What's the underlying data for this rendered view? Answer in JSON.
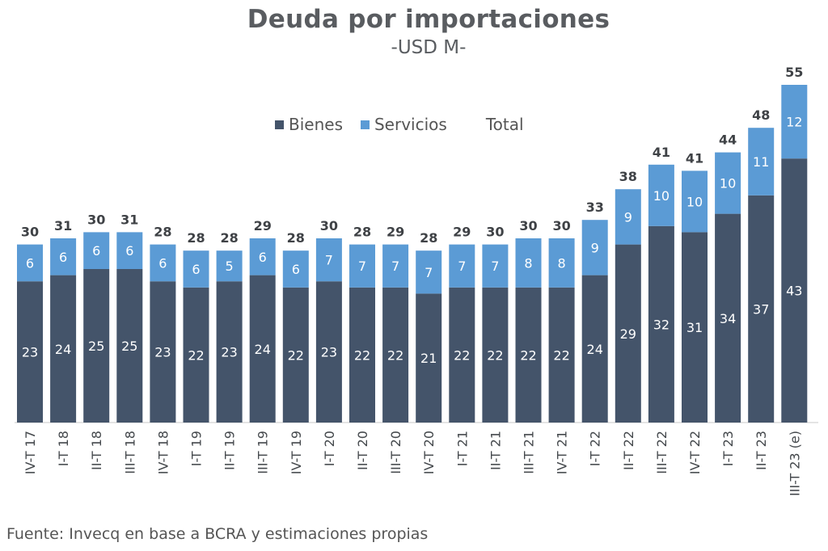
{
  "chart_data": {
    "type": "bar",
    "stacked": true,
    "title": "Deuda por importaciones",
    "subtitle": "-USD M-",
    "categories": [
      "IV-T 17",
      "I-T 18",
      "II-T 18",
      "III-T 18",
      "IV-T 18",
      "I-T 19",
      "II-T 19",
      "III-T 19",
      "IV-T 19",
      "I-T 20",
      "II-T 20",
      "III-T 20",
      "IV-T 20",
      "I-T 21",
      "II-T 21",
      "III-T 21",
      "IV-T 21",
      "I-T 22",
      "II-T 22",
      "III-T 22",
      "IV-T 22",
      "I-T 23",
      "II-T 23",
      "III-T 23 (e)"
    ],
    "series": [
      {
        "name": "Bienes",
        "color": "#44546a",
        "values": [
          23,
          24,
          25,
          25,
          23,
          22,
          23,
          24,
          22,
          23,
          22,
          22,
          21,
          22,
          22,
          22,
          22,
          24,
          29,
          32,
          31,
          34,
          37,
          43
        ]
      },
      {
        "name": "Servicios",
        "color": "#5b9bd5",
        "values": [
          6,
          6,
          6,
          6,
          6,
          6,
          5,
          6,
          6,
          7,
          7,
          7,
          7,
          7,
          7,
          8,
          8,
          9,
          9,
          10,
          10,
          10,
          11,
          12
        ]
      }
    ],
    "totals_series_name": "Total",
    "totals": [
      30,
      31,
      30,
      31,
      28,
      28,
      28,
      29,
      28,
      30,
      28,
      29,
      28,
      29,
      30,
      30,
      30,
      33,
      38,
      41,
      41,
      44,
      48,
      55
    ],
    "legend_position": "top-center",
    "grid": false
  },
  "footer": {
    "source": "Fuente: Invecq en base a BCRA y estimaciones propias"
  }
}
